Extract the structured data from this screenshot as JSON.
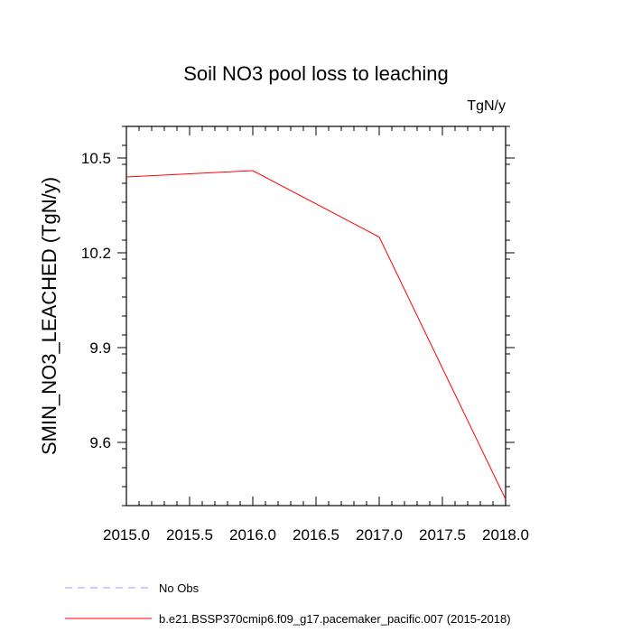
{
  "chart_data": {
    "type": "line",
    "title": "Soil NO3 pool loss to leaching",
    "units": "TgN/y",
    "xlabel": "",
    "ylabel": "SMIN_NO3_LEACHED  (TgN/y)",
    "xlim": [
      2015.0,
      2018.0
    ],
    "ylim": [
      9.4,
      10.6
    ],
    "x_ticks": [
      "2015.0",
      "2015.5",
      "2016.0",
      "2016.5",
      "2017.0",
      "2017.5",
      "2018.0"
    ],
    "y_ticks": [
      "9.6",
      "9.9",
      "10.2",
      "10.5"
    ],
    "grid": false,
    "legend_position": "bottom-left",
    "series": [
      {
        "name": "No Obs",
        "style": "dashed",
        "color": "#9999ff",
        "x": [],
        "y": []
      },
      {
        "name": "b.e21.BSSP370cmip6.f09_g17.pacemaker_pacific.007 (2015-2018)",
        "style": "solid",
        "color": "#ff0000",
        "x": [
          2015,
          2016,
          2017,
          2018
        ],
        "y": [
          10.44,
          10.46,
          10.25,
          9.42
        ]
      }
    ]
  }
}
